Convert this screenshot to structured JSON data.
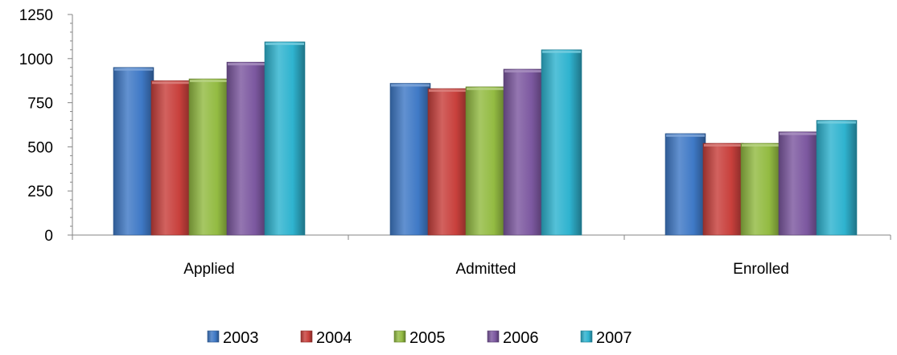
{
  "chart_data": {
    "type": "bar",
    "categories": [
      "Applied",
      "Admitted",
      "Enrolled"
    ],
    "series": [
      {
        "name": "2003",
        "values": [
          950,
          860,
          575
        ],
        "color": "#3f79c6"
      },
      {
        "name": "2004",
        "values": [
          875,
          830,
          520
        ],
        "color": "#c8403c"
      },
      {
        "name": "2005",
        "values": [
          885,
          840,
          520
        ],
        "color": "#93bb42"
      },
      {
        "name": "2006",
        "values": [
          980,
          940,
          585
        ],
        "color": "#7c58a0"
      },
      {
        "name": "2007",
        "values": [
          1095,
          1050,
          650
        ],
        "color": "#2fb3cf"
      }
    ],
    "y_ticks": [
      "0",
      "250",
      "500",
      "750",
      "1000",
      "1250"
    ],
    "ylim": [
      0,
      1250
    ],
    "grid": false,
    "legend_position": "bottom"
  }
}
